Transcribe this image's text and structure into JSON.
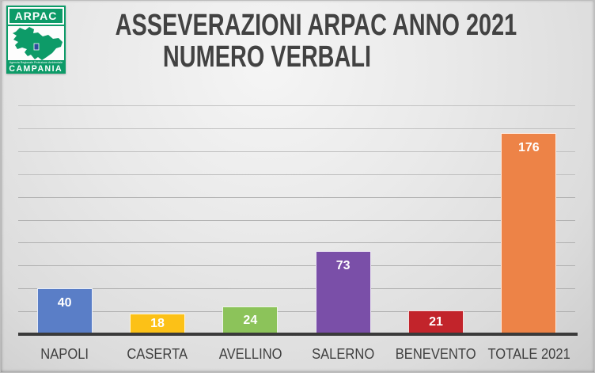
{
  "logo": {
    "brand": "ARPAC",
    "agency_line": "Agenzia Regionale Protezione Ambientale",
    "region": "CAMPANIA",
    "green": "#0D9B68",
    "emblem_blue": "#2B4C9B"
  },
  "title": {
    "line1": "ASSEVERAZIONI ARPAC ANNO 2021",
    "line2": "NUMERO VERBALI"
  },
  "chart_data": {
    "type": "bar",
    "title": "ASSEVERAZIONI ARPAC ANNO 2021 NUMERO VERBALI",
    "categories": [
      "NAPOLI",
      "CASERTA",
      "AVELLINO",
      "SALERNO",
      "BENEVENTO",
      "TOTALE 2021"
    ],
    "values": [
      40,
      18,
      24,
      73,
      21,
      176
    ],
    "bar_colors": [
      "#5A7EC7",
      "#FCC117",
      "#8CC35A",
      "#7A4FA8",
      "#C2242B",
      "#ED8347"
    ],
    "data_labels": true,
    "data_label_color": "#FFFFFF",
    "xlabel": "",
    "ylabel": "",
    "ylim": [
      0,
      200
    ],
    "gridline_step": 20,
    "grid": true,
    "legend": "none",
    "y_tick_labels_visible": false
  }
}
